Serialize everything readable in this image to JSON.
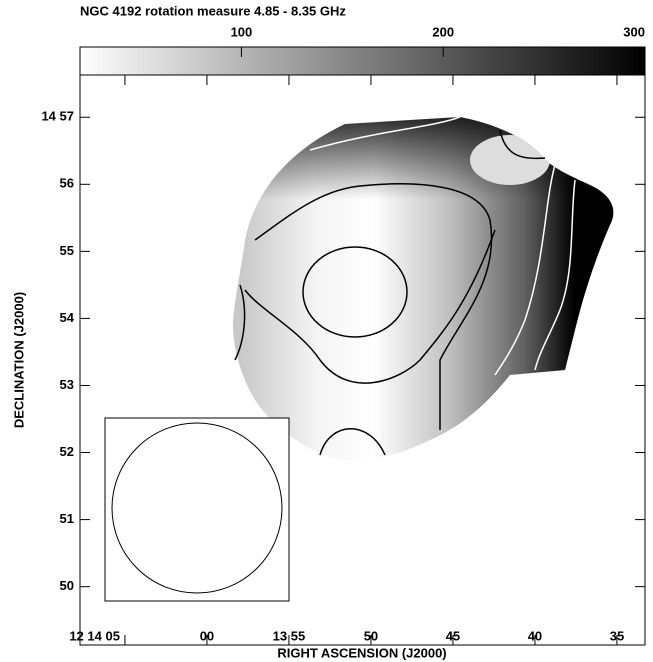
{
  "chart_data": {
    "type": "image",
    "title": "NGC 4192 rotation measure 4.85 - 8.35 GHz",
    "colorbar": {
      "lim": [
        20,
        300
      ],
      "ticks": [
        100,
        200,
        300
      ],
      "colors": [
        "#ffffff",
        "#000000"
      ]
    },
    "x_label": "RIGHT ASCENSION (J2000)",
    "y_label": "DECLINATION (J2000)",
    "xlim": [
      847.74,
      813.29
    ],
    "xticks": [
      {
        "value": 845,
        "label": "12 14 05"
      },
      {
        "value": 840,
        "label": "00"
      },
      {
        "value": 835,
        "label": "13 55"
      },
      {
        "value": 830,
        "label": "50"
      },
      {
        "value": 825,
        "label": "45"
      },
      {
        "value": 820,
        "label": "40"
      },
      {
        "value": 815,
        "label": "35"
      }
    ],
    "ylim": [
      49.13,
      57.63
    ],
    "yticks": [
      {
        "value": 57,
        "label": "14 57"
      },
      56,
      55,
      54,
      53,
      52,
      51,
      50
    ]
  }
}
